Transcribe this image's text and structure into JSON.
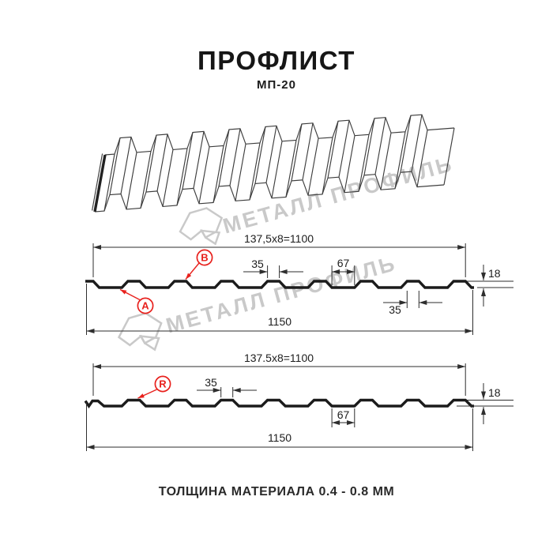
{
  "header": {
    "title": "ПРОФЛИСТ",
    "subtitle": "МП-20"
  },
  "footer": {
    "thickness_note": "ТОЛЩИНА МАТЕРИАЛА 0.4 - 0.8 ММ"
  },
  "watermark": {
    "brand": "МЕТАЛЛ ПРОФИЛЬ"
  },
  "profile_front": {
    "pitch_label": "137,5x8=1100",
    "overall_label": "1150",
    "rib_top_label": "35",
    "valley_label": "67",
    "height_label": "18",
    "rib_bottom_label": "35",
    "marker_a": "A",
    "marker_b": "B"
  },
  "profile_back": {
    "pitch_label": "137.5x8=1100",
    "overall_label": "1150",
    "rib_top_label": "35",
    "valley_label": "67",
    "height_label": "18",
    "marker_r": "R"
  },
  "spec_mm": {
    "rib_pitch": 137.5,
    "rib_count": 8,
    "working_width": 1100,
    "overall_width": 1150,
    "rib_top_width": 35,
    "valley_width": 67,
    "profile_height": 18,
    "thickness_range": "0.4 - 0.8"
  },
  "colors": {
    "accent_red": "#e8211d",
    "line": "#1b1b1b",
    "watermark_gray": "#c9c9c9"
  }
}
